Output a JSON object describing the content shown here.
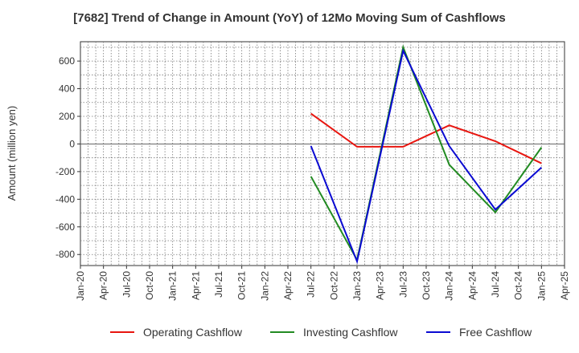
{
  "chart_data": {
    "type": "line",
    "title": "[7682]  Trend of Change in Amount (YoY) of 12Mo Moving Sum of Cashflows",
    "xlabel": "",
    "ylabel": "Amount (million yen)",
    "categories": [
      "Jan-20",
      "Apr-20",
      "Jul-20",
      "Oct-20",
      "Jan-21",
      "Apr-21",
      "Jul-21",
      "Oct-21",
      "Jan-22",
      "Apr-22",
      "Jul-22",
      "Oct-22",
      "Jan-23",
      "Apr-23",
      "Jul-23",
      "Oct-23",
      "Jan-24",
      "Apr-24",
      "Jul-24",
      "Oct-24",
      "Jan-25",
      "Apr-25"
    ],
    "ylim": [
      -880,
      740
    ],
    "yticks": [
      600,
      400,
      200,
      0,
      -200,
      -400,
      -600,
      -800
    ],
    "grid": true,
    "legend_position": "bottom",
    "series": [
      {
        "name": "Operating Cashflow",
        "color": "#e8150f",
        "x": [
          "Jul-22",
          "Jan-23",
          "Jul-23",
          "Jan-24",
          "Jul-24",
          "Jan-25"
        ],
        "values": [
          220,
          -20,
          -20,
          135,
          20,
          -140
        ]
      },
      {
        "name": "Investing Cashflow",
        "color": "#228b22",
        "x": [
          "Jul-22",
          "Jan-23",
          "Jul-23",
          "Jan-24",
          "Jul-24",
          "Jan-25"
        ],
        "values": [
          -235,
          -840,
          700,
          -150,
          -495,
          -25
        ]
      },
      {
        "name": "Free Cashflow",
        "color": "#0a0ad2",
        "x": [
          "Jul-22",
          "Jan-23",
          "Jul-23",
          "Jan-24",
          "Jul-24",
          "Jan-25"
        ],
        "values": [
          -15,
          -850,
          675,
          -15,
          -475,
          -170
        ]
      }
    ]
  }
}
